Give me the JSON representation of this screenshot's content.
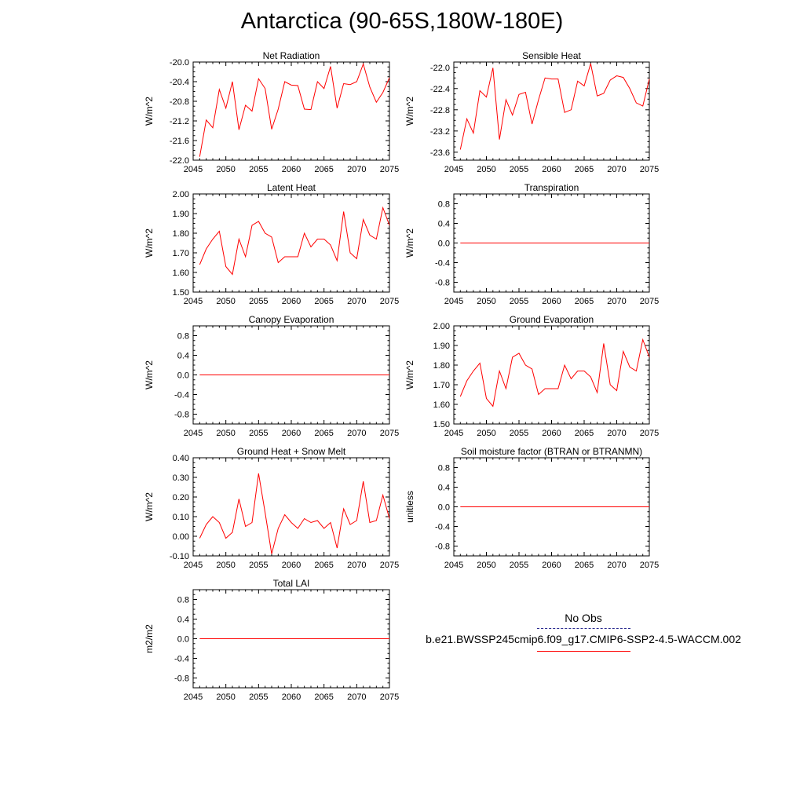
{
  "title": "Antarctica (90-65S,180W-180E)",
  "legend": {
    "obs_label": "No Obs",
    "case_label": "b.e21.BWSSP245cmip6.f09_g17.CMIP6-SSP2-4.5-WACCM.002",
    "obs_color": "#2b2b8f",
    "case_color": "#ff0000"
  },
  "chart_data": [
    {
      "type": "line",
      "title": "Net Radiation",
      "ylabel": "W/m^2",
      "xlim": [
        2045,
        2075
      ],
      "xticks": [
        "2045",
        "2050",
        "2055",
        "2060",
        "2065",
        "2070",
        "2075"
      ],
      "ylim": [
        -22.0,
        -20.0
      ],
      "yticks": [
        "-20.0",
        "-20.4",
        "-20.8",
        "-21.2",
        "-21.6",
        "-22.0"
      ],
      "series": [
        {
          "color": "#ff0000",
          "x": [
            2046,
            2047,
            2048,
            2049,
            2050,
            2051,
            2052,
            2053,
            2054,
            2055,
            2056,
            2057,
            2058,
            2059,
            2060,
            2061,
            2062,
            2063,
            2064,
            2065,
            2066,
            2067,
            2068,
            2069,
            2070,
            2071,
            2072,
            2073,
            2074,
            2075
          ],
          "y": [
            -21.93,
            -21.18,
            -21.34,
            -20.56,
            -20.94,
            -20.4,
            -21.38,
            -20.88,
            -21.0,
            -20.34,
            -20.54,
            -21.37,
            -20.96,
            -20.4,
            -20.47,
            -20.48,
            -20.96,
            -20.97,
            -20.4,
            -20.54,
            -20.09,
            -20.94,
            -20.44,
            -20.46,
            -20.4,
            -20.04,
            -20.51,
            -20.82,
            -20.62,
            -20.32
          ]
        }
      ]
    },
    {
      "type": "line",
      "title": "Sensible Heat",
      "ylabel": "W/m^2",
      "xlim": [
        2045,
        2075
      ],
      "xticks": [
        "2045",
        "2050",
        "2055",
        "2060",
        "2065",
        "2070",
        "2075"
      ],
      "ylim": [
        -23.75,
        -21.9
      ],
      "yticks": [
        "-22.0",
        "-22.4",
        "-22.8",
        "-23.2",
        "-23.6"
      ],
      "series": [
        {
          "color": "#ff0000",
          "x": [
            2046,
            2047,
            2048,
            2049,
            2050,
            2051,
            2052,
            2053,
            2054,
            2055,
            2056,
            2057,
            2058,
            2059,
            2060,
            2061,
            2062,
            2063,
            2064,
            2065,
            2066,
            2067,
            2068,
            2069,
            2070,
            2071,
            2072,
            2073,
            2074,
            2075
          ],
          "y": [
            -23.55,
            -22.97,
            -23.24,
            -22.44,
            -22.56,
            -22.01,
            -23.36,
            -22.61,
            -22.9,
            -22.51,
            -22.47,
            -23.07,
            -22.61,
            -22.2,
            -22.22,
            -22.22,
            -22.85,
            -22.8,
            -22.26,
            -22.35,
            -21.93,
            -22.54,
            -22.49,
            -22.24,
            -22.16,
            -22.19,
            -22.4,
            -22.67,
            -22.73,
            -22.22
          ]
        }
      ]
    },
    {
      "type": "line",
      "title": "Latent Heat",
      "ylabel": "W/m^2",
      "xlim": [
        2045,
        2075
      ],
      "xticks": [
        "2045",
        "2050",
        "2055",
        "2060",
        "2065",
        "2070",
        "2075"
      ],
      "ylim": [
        1.5,
        2.0
      ],
      "yticks": [
        "2.00",
        "1.90",
        "1.80",
        "1.70",
        "1.60",
        "1.50"
      ],
      "series": [
        {
          "color": "#ff0000",
          "x": [
            2046,
            2047,
            2048,
            2049,
            2050,
            2051,
            2052,
            2053,
            2054,
            2055,
            2056,
            2057,
            2058,
            2059,
            2060,
            2061,
            2062,
            2063,
            2064,
            2065,
            2066,
            2067,
            2068,
            2069,
            2070,
            2071,
            2072,
            2073,
            2074,
            2075
          ],
          "y": [
            1.64,
            1.72,
            1.77,
            1.81,
            1.63,
            1.59,
            1.77,
            1.68,
            1.84,
            1.86,
            1.8,
            1.78,
            1.65,
            1.68,
            1.68,
            1.68,
            1.8,
            1.73,
            1.77,
            1.77,
            1.74,
            1.66,
            1.91,
            1.7,
            1.67,
            1.87,
            1.79,
            1.77,
            1.93,
            1.84
          ]
        }
      ]
    },
    {
      "type": "line",
      "title": "Transpiration",
      "ylabel": "W/m^2",
      "xlim": [
        2045,
        2075
      ],
      "xticks": [
        "2045",
        "2050",
        "2055",
        "2060",
        "2065",
        "2070",
        "2075"
      ],
      "ylim": [
        -1.0,
        1.0
      ],
      "yticks": [
        "0.8",
        "0.4",
        "0.0",
        "-0.4",
        "-0.8"
      ],
      "series": [
        {
          "color": "#ff0000",
          "x": [
            2046,
            2047,
            2048,
            2049,
            2050,
            2051,
            2052,
            2053,
            2054,
            2055,
            2056,
            2057,
            2058,
            2059,
            2060,
            2061,
            2062,
            2063,
            2064,
            2065,
            2066,
            2067,
            2068,
            2069,
            2070,
            2071,
            2072,
            2073,
            2074,
            2075
          ],
          "y": [
            0,
            0,
            0,
            0,
            0,
            0,
            0,
            0,
            0,
            0,
            0,
            0,
            0,
            0,
            0,
            0,
            0,
            0,
            0,
            0,
            0,
            0,
            0,
            0,
            0,
            0,
            0,
            0,
            0,
            0
          ]
        }
      ]
    },
    {
      "type": "line",
      "title": "Canopy Evaporation",
      "ylabel": "W/m^2",
      "xlim": [
        2045,
        2075
      ],
      "xticks": [
        "2045",
        "2050",
        "2055",
        "2060",
        "2065",
        "2070",
        "2075"
      ],
      "ylim": [
        -1.0,
        1.0
      ],
      "yticks": [
        "0.8",
        "0.4",
        "0.0",
        "-0.4",
        "-0.8"
      ],
      "series": [
        {
          "color": "#ff0000",
          "x": [
            2046,
            2047,
            2048,
            2049,
            2050,
            2051,
            2052,
            2053,
            2054,
            2055,
            2056,
            2057,
            2058,
            2059,
            2060,
            2061,
            2062,
            2063,
            2064,
            2065,
            2066,
            2067,
            2068,
            2069,
            2070,
            2071,
            2072,
            2073,
            2074,
            2075
          ],
          "y": [
            0,
            0,
            0,
            0,
            0,
            0,
            0,
            0,
            0,
            0,
            0,
            0,
            0,
            0,
            0,
            0,
            0,
            0,
            0,
            0,
            0,
            0,
            0,
            0,
            0,
            0,
            0,
            0,
            0,
            0
          ]
        }
      ]
    },
    {
      "type": "line",
      "title": "Ground Evaporation",
      "ylabel": "W/m^2",
      "xlim": [
        2045,
        2075
      ],
      "xticks": [
        "2045",
        "2050",
        "2055",
        "2060",
        "2065",
        "2070",
        "2075"
      ],
      "ylim": [
        1.5,
        2.0
      ],
      "yticks": [
        "2.00",
        "1.90",
        "1.80",
        "1.70",
        "1.60",
        "1.50"
      ],
      "series": [
        {
          "color": "#ff0000",
          "x": [
            2046,
            2047,
            2048,
            2049,
            2050,
            2051,
            2052,
            2053,
            2054,
            2055,
            2056,
            2057,
            2058,
            2059,
            2060,
            2061,
            2062,
            2063,
            2064,
            2065,
            2066,
            2067,
            2068,
            2069,
            2070,
            2071,
            2072,
            2073,
            2074,
            2075
          ],
          "y": [
            1.64,
            1.72,
            1.77,
            1.81,
            1.63,
            1.59,
            1.77,
            1.68,
            1.84,
            1.86,
            1.8,
            1.78,
            1.65,
            1.68,
            1.68,
            1.68,
            1.8,
            1.73,
            1.77,
            1.77,
            1.74,
            1.66,
            1.91,
            1.7,
            1.67,
            1.87,
            1.79,
            1.77,
            1.93,
            1.84
          ]
        }
      ]
    },
    {
      "type": "line",
      "title": "Ground Heat + Snow Melt",
      "ylabel": "W/m^2",
      "xlim": [
        2045,
        2075
      ],
      "xticks": [
        "2045",
        "2050",
        "2055",
        "2060",
        "2065",
        "2070",
        "2075"
      ],
      "ylim": [
        -0.1,
        0.4
      ],
      "yticks": [
        "0.40",
        "0.30",
        "0.20",
        "0.10",
        "0.00",
        "-0.10"
      ],
      "series": [
        {
          "color": "#ff0000",
          "x": [
            2046,
            2047,
            2048,
            2049,
            2050,
            2051,
            2052,
            2053,
            2054,
            2055,
            2056,
            2057,
            2058,
            2059,
            2060,
            2061,
            2062,
            2063,
            2064,
            2065,
            2066,
            2067,
            2068,
            2069,
            2070,
            2071,
            2072,
            2073,
            2074,
            2075
          ],
          "y": [
            -0.01,
            0.06,
            0.1,
            0.07,
            -0.01,
            0.02,
            0.19,
            0.05,
            0.07,
            0.32,
            0.12,
            -0.09,
            0.04,
            0.11,
            0.07,
            0.04,
            0.09,
            0.07,
            0.08,
            0.04,
            0.07,
            -0.06,
            0.14,
            0.06,
            0.08,
            0.28,
            0.07,
            0.08,
            0.21,
            0.09
          ]
        }
      ]
    },
    {
      "type": "line",
      "title": "Soil moisture factor (BTRAN or BTRANMN)",
      "ylabel": "unitless",
      "xlim": [
        2045,
        2075
      ],
      "xticks": [
        "2045",
        "2050",
        "2055",
        "2060",
        "2065",
        "2070",
        "2075"
      ],
      "ylim": [
        -1.0,
        1.0
      ],
      "yticks": [
        "0.8",
        "0.4",
        "0.0",
        "-0.4",
        "-0.8"
      ],
      "series": [
        {
          "color": "#ff0000",
          "x": [
            2046,
            2047,
            2048,
            2049,
            2050,
            2051,
            2052,
            2053,
            2054,
            2055,
            2056,
            2057,
            2058,
            2059,
            2060,
            2061,
            2062,
            2063,
            2064,
            2065,
            2066,
            2067,
            2068,
            2069,
            2070,
            2071,
            2072,
            2073,
            2074,
            2075
          ],
          "y": [
            0,
            0,
            0,
            0,
            0,
            0,
            0,
            0,
            0,
            0,
            0,
            0,
            0,
            0,
            0,
            0,
            0,
            0,
            0,
            0,
            0,
            0,
            0,
            0,
            0,
            0,
            0,
            0,
            0,
            0
          ]
        }
      ]
    },
    {
      "type": "line",
      "title": "Total LAI",
      "ylabel": "m2/m2",
      "xlim": [
        2045,
        2075
      ],
      "xticks": [
        "2045",
        "2050",
        "2055",
        "2060",
        "2065",
        "2070",
        "2075"
      ],
      "ylim": [
        -1.0,
        1.0
      ],
      "yticks": [
        "0.8",
        "0.4",
        "0.0",
        "-0.4",
        "-0.8"
      ],
      "series": [
        {
          "color": "#ff0000",
          "x": [
            2046,
            2047,
            2048,
            2049,
            2050,
            2051,
            2052,
            2053,
            2054,
            2055,
            2056,
            2057,
            2058,
            2059,
            2060,
            2061,
            2062,
            2063,
            2064,
            2065,
            2066,
            2067,
            2068,
            2069,
            2070,
            2071,
            2072,
            2073,
            2074,
            2075
          ],
          "y": [
            0,
            0,
            0,
            0,
            0,
            0,
            0,
            0,
            0,
            0,
            0,
            0,
            0,
            0,
            0,
            0,
            0,
            0,
            0,
            0,
            0,
            0,
            0,
            0,
            0,
            0,
            0,
            0,
            0,
            0
          ]
        }
      ]
    }
  ]
}
